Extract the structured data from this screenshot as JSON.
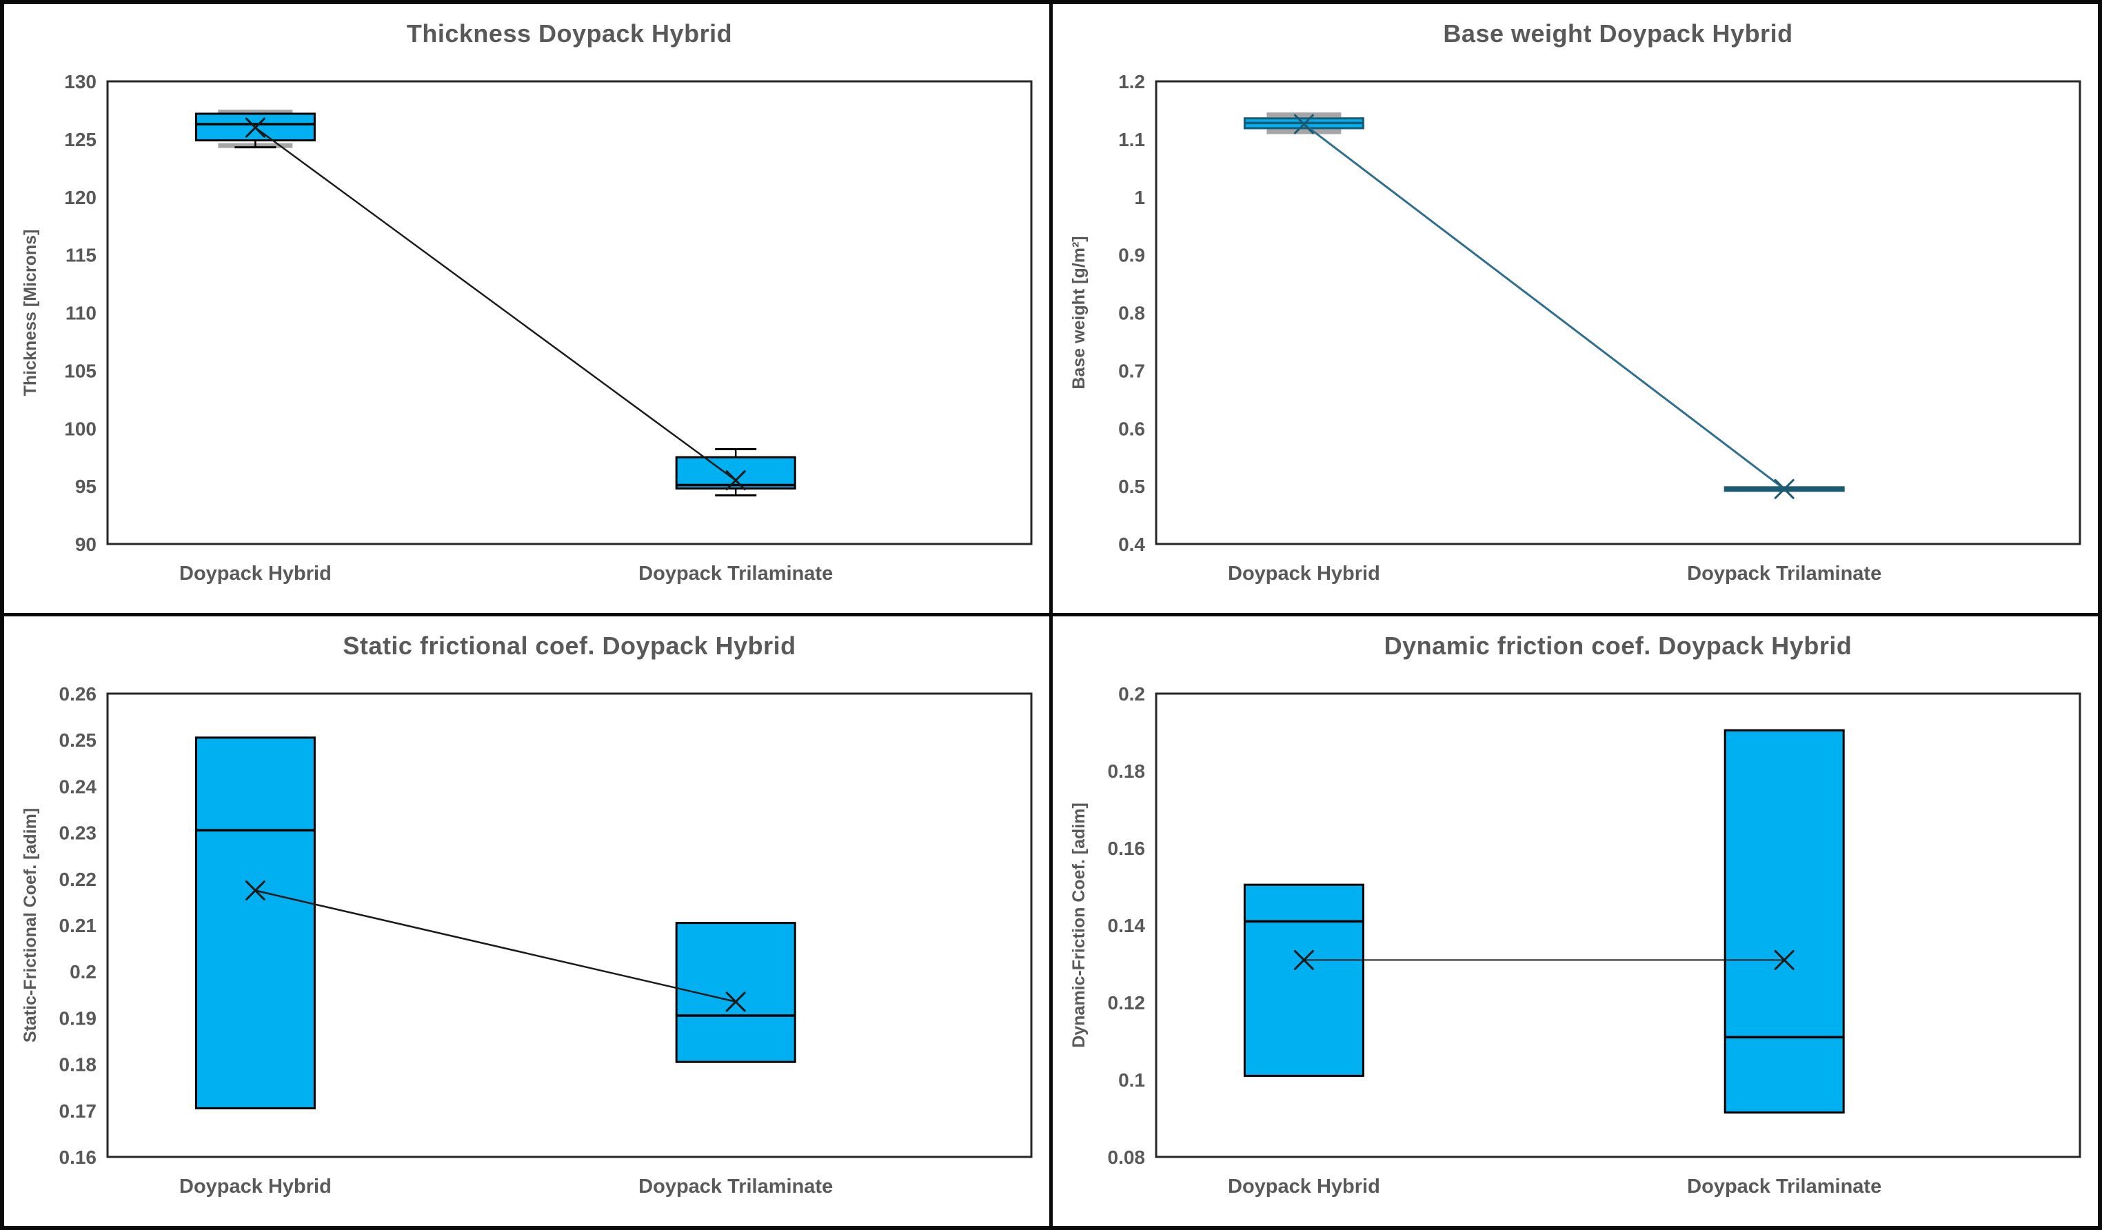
{
  "figure": {
    "background": "#FFFFFF",
    "divider_color": "#0A0A0A",
    "text_color": "#595959",
    "frame_color": "#262626",
    "box_fill": "#00B0F0",
    "gray_cap_color": "#A6A6A6"
  },
  "chart_data": [
    {
      "type": "box",
      "title": "Thickness Doypack Hybrid",
      "ylabel": "Thickness [Microns]",
      "xlabel": "",
      "grid": false,
      "legend": "none",
      "categories": [
        "Doypack Hybrid",
        "Doypack Trilaminate"
      ],
      "ylim": [
        90,
        130
      ],
      "y_ticks": [
        {
          "value": 130,
          "label": "130"
        },
        {
          "value": 125,
          "label": "125"
        },
        {
          "value": 120,
          "label": "120"
        },
        {
          "value": 115,
          "label": "115"
        },
        {
          "value": 110,
          "label": "110"
        },
        {
          "value": 105,
          "label": "105"
        },
        {
          "value": 100,
          "label": "100"
        },
        {
          "value": 95,
          "label": "95"
        },
        {
          "value": 90,
          "label": "90"
        }
      ],
      "series": [
        {
          "name": "Doypack Hybrid",
          "whisker_low": 124.3,
          "q1": 124.9,
          "median": 126.3,
          "mean": 126.0,
          "q3": 127.2,
          "whisker_high": 127.2,
          "gray_cap_high": 127.35,
          "gray_cap_low": 124.45
        },
        {
          "name": "Doypack Trilaminate",
          "whisker_low": 94.2,
          "q1": 94.8,
          "median": 95.1,
          "mean": 95.5,
          "q3": 97.5,
          "whisker_high": 98.2
        }
      ],
      "colors": {
        "box_stroke": "#000000",
        "median": "#000000",
        "whisker": "#000000",
        "mean_line": "#1A1A1A",
        "mean_marker": "#1A1A1A",
        "mean_line_width": 2.5
      }
    },
    {
      "type": "box",
      "title": "Base weight Doypack Hybrid",
      "ylabel": "Base weight [g/m²]",
      "xlabel": "",
      "grid": false,
      "legend": "none",
      "categories": [
        "Doypack Hybrid",
        "Doypack Trilaminate"
      ],
      "ylim": [
        0.4,
        1.2
      ],
      "y_ticks": [
        {
          "value": 1.2,
          "label": "1.2"
        },
        {
          "value": 1.1,
          "label": "1.1"
        },
        {
          "value": 1.0,
          "label": "1"
        },
        {
          "value": 0.9,
          "label": "0.9"
        },
        {
          "value": 0.8,
          "label": "0.8"
        },
        {
          "value": 0.7,
          "label": "0.7"
        },
        {
          "value": 0.6,
          "label": "0.6"
        },
        {
          "value": 0.5,
          "label": "0.5"
        },
        {
          "value": 0.4,
          "label": "0.4"
        }
      ],
      "series": [
        {
          "name": "Doypack Hybrid",
          "whisker_low": 1.119,
          "q1": 1.119,
          "median": 1.128,
          "mean": 1.126,
          "q3": 1.136,
          "whisker_high": 1.136,
          "gray_cap_high": 1.142,
          "gray_cap_low": 1.113
        },
        {
          "name": "Doypack Trilaminate",
          "whisker_low": 0.492,
          "q1": 0.492,
          "median": 0.495,
          "mean": 0.495,
          "q3": 0.498,
          "whisker_high": 0.498
        }
      ],
      "colors": {
        "box_stroke": "#1C5A74",
        "median": "#1C5A74",
        "whisker": "#1C5A74",
        "mean_line": "#2E6E8E",
        "mean_marker": "#1C5A74",
        "mean_line_width": 3
      }
    },
    {
      "type": "box",
      "title": "Static frictional coef. Doypack Hybrid",
      "ylabel": "Static-Frictional Coef. [adim]",
      "xlabel": "",
      "grid": false,
      "legend": "none",
      "categories": [
        "Doypack Hybrid",
        "Doypack Trilaminate"
      ],
      "ylim": [
        0.16,
        0.26
      ],
      "y_ticks": [
        {
          "value": 0.26,
          "label": "0.26"
        },
        {
          "value": 0.25,
          "label": "0.25"
        },
        {
          "value": 0.24,
          "label": "0.24"
        },
        {
          "value": 0.23,
          "label": "0.23"
        },
        {
          "value": 0.22,
          "label": "0.22"
        },
        {
          "value": 0.21,
          "label": "0.21"
        },
        {
          "value": 0.2,
          "label": "0.2"
        },
        {
          "value": 0.19,
          "label": "0.19"
        },
        {
          "value": 0.18,
          "label": "0.18"
        },
        {
          "value": 0.17,
          "label": "0.17"
        },
        {
          "value": 0.16,
          "label": "0.16"
        }
      ],
      "series": [
        {
          "name": "Doypack Hybrid",
          "whisker_low": 0.1705,
          "q1": 0.1705,
          "median": 0.2305,
          "mean": 0.2175,
          "q3": 0.2505,
          "whisker_high": 0.2505
        },
        {
          "name": "Doypack Trilaminate",
          "whisker_low": 0.1805,
          "q1": 0.1805,
          "median": 0.1905,
          "mean": 0.1935,
          "q3": 0.2105,
          "whisker_high": 0.2105
        }
      ],
      "colors": {
        "box_stroke": "#000000",
        "median": "#000000",
        "whisker": "#000000",
        "mean_line": "#1A1A1A",
        "mean_marker": "#1A1A1A",
        "mean_line_width": 2.5
      }
    },
    {
      "type": "box",
      "title": "Dynamic friction coef. Doypack Hybrid",
      "ylabel": "Dynamic-Friction Coef. [adim]",
      "xlabel": "",
      "grid": false,
      "legend": "none",
      "categories": [
        "Doypack Hybrid",
        "Doypack Trilaminate"
      ],
      "ylim": [
        0.08,
        0.2
      ],
      "y_ticks": [
        {
          "value": 0.2,
          "label": "0.2"
        },
        {
          "value": 0.18,
          "label": "0.18"
        },
        {
          "value": 0.16,
          "label": "0.16"
        },
        {
          "value": 0.14,
          "label": "0.14"
        },
        {
          "value": 0.12,
          "label": "0.12"
        },
        {
          "value": 0.1,
          "label": "0.1"
        },
        {
          "value": 0.08,
          "label": "0.08"
        }
      ],
      "series": [
        {
          "name": "Doypack Hybrid",
          "whisker_low": 0.101,
          "q1": 0.101,
          "median": 0.141,
          "mean": 0.131,
          "q3": 0.1505,
          "whisker_high": 0.1505
        },
        {
          "name": "Doypack Trilaminate",
          "whisker_low": 0.0915,
          "q1": 0.0915,
          "median": 0.111,
          "mean": 0.131,
          "q3": 0.1905,
          "whisker_high": 0.1905
        }
      ],
      "colors": {
        "box_stroke": "#000000",
        "median": "#000000",
        "whisker": "#000000",
        "mean_line": "#1A1A1A",
        "mean_marker": "#1A1A1A",
        "mean_line_width": 2
      }
    }
  ]
}
